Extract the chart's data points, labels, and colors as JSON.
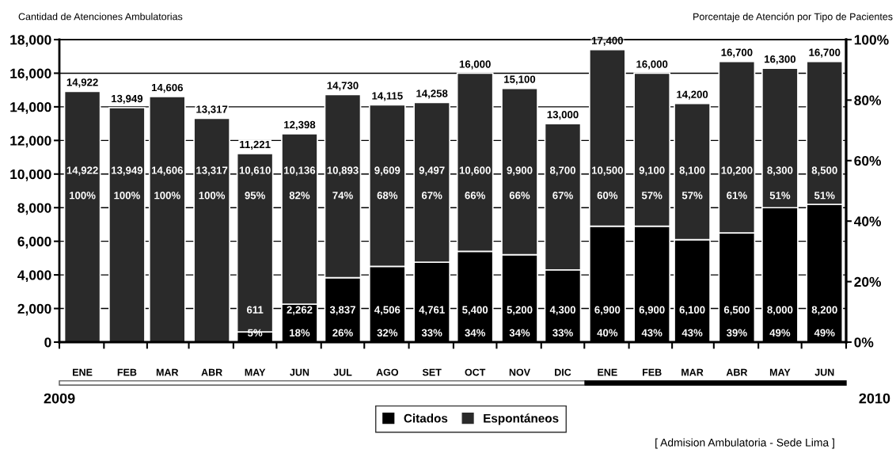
{
  "chart_data": {
    "type": "bar",
    "stacked": true,
    "ylabel": "Cantidad de Atenciones Ambulatorias",
    "y2label": "Porcentaje de Atención por Tipo de Pacientes",
    "x": [
      "2009-01",
      "2009-02",
      "2009-03",
      "2009-04",
      "2009-05",
      "2009-06",
      "2009-07",
      "2009-08",
      "2009-09",
      "2009-10",
      "2009-11",
      "2009-12",
      "2010-01",
      "2010-02",
      "2010-03",
      "2010-04",
      "2010-05",
      "2010-06"
    ],
    "xlim": [
      "2008-12-16",
      "2010-06-16"
    ],
    "xticks": [
      {
        "value": "2009-01",
        "label": "ENE"
      },
      {
        "value": "2009-02",
        "label": "FEB"
      },
      {
        "value": "2009-03",
        "label": "MAR"
      },
      {
        "value": "2009-04",
        "label": "ABR"
      },
      {
        "value": "2009-05",
        "label": "MAY"
      },
      {
        "value": "2009-06",
        "label": "JUN"
      },
      {
        "value": "2009-07",
        "label": "JUL"
      },
      {
        "value": "2009-08",
        "label": "AGO"
      },
      {
        "value": "2009-09",
        "label": "SET"
      },
      {
        "value": "2009-10",
        "label": "OCT"
      },
      {
        "value": "2009-11",
        "label": "NOV"
      },
      {
        "value": "2009-12",
        "label": "DIC"
      },
      {
        "value": "2010-01",
        "label": "ENE"
      },
      {
        "value": "2010-02",
        "label": "FEB"
      },
      {
        "value": "2010-03",
        "label": "MAR"
      },
      {
        "value": "2010-04",
        "label": "ABR"
      },
      {
        "value": "2010-05",
        "label": "MAY"
      },
      {
        "value": "2010-06",
        "label": "JUN"
      },
      {
        "value": "2008-12-16",
        "label": null
      },
      {
        "value": "2009-01-16",
        "label": null
      },
      {
        "value": "2009-02-15",
        "label": null
      },
      {
        "value": "2009-03-16",
        "label": null
      },
      {
        "value": "2009-04-16",
        "label": null
      },
      {
        "value": "2009-05-16",
        "label": null
      },
      {
        "value": "2009-06-16",
        "label": null
      },
      {
        "value": "2009-07-16",
        "label": null
      },
      {
        "value": "2009-08-16",
        "label": null
      },
      {
        "value": "2009-09-16",
        "label": null
      },
      {
        "value": "2009-10-16",
        "label": null
      },
      {
        "value": "2009-11-16",
        "label": null
      },
      {
        "value": "2009-12-16",
        "label": null
      },
      {
        "value": "2010-01-16",
        "label": null
      },
      {
        "value": "2010-02-15",
        "label": null
      },
      {
        "value": "2010-03-16",
        "label": null
      },
      {
        "value": "2010-04-16",
        "label": null
      },
      {
        "value": "2010-05-16",
        "label": null
      },
      {
        "value": "2010-06-16",
        "label": null
      }
    ],
    "ylim": [
      0,
      18000
    ],
    "yticks": [
      0,
      {
        "value": 2000,
        "label": "2,000"
      },
      {
        "value": 4000,
        "label": "4,000"
      },
      {
        "value": 6000,
        "label": "6,000"
      },
      {
        "value": 8000,
        "label": "8,000"
      },
      {
        "value": 10000,
        "label": "10,000"
      },
      {
        "value": 12000,
        "label": "12,000"
      },
      {
        "value": 14000,
        "label": "14,000"
      },
      {
        "value": 16000,
        "label": "16,000"
      },
      {
        "value": 18000,
        "label": "18,000"
      }
    ],
    "y2lim": [
      0,
      100
    ],
    "y2ticks": [
      {
        "value": 0,
        "label": "0%"
      },
      {
        "value": 20,
        "label": "20%"
      },
      {
        "value": 40,
        "label": "40%"
      },
      {
        "value": 60,
        "label": "60%"
      },
      {
        "value": 80,
        "label": "80%"
      },
      {
        "value": 100,
        "label": "100%"
      }
    ],
    "series": [
      {
        "name": "Citados",
        "color": "#000000",
        "values": [
          0,
          0,
          0,
          0,
          611,
          2262,
          3837,
          4506,
          4761,
          5400,
          5200,
          4300,
          6900,
          6900,
          6100,
          6500,
          8000,
          8200
        ],
        "value_labels": [
          null,
          null,
          null,
          null,
          "611\n5%",
          "2,262\n18%",
          "3,837\n26%",
          "4,506\n32%",
          "4,761\n33%",
          "5,400\n34%",
          "5,200\n34%",
          "4,300\n33%",
          "6,900\n40%",
          "6,900\n43%",
          "6,100\n43%",
          "6,500\n39%",
          "8,000\n49%",
          "8,200\n49%"
        ]
      },
      {
        "name": "Espontáneos",
        "color": "#2a2a2a",
        "values": [
          14922,
          13949,
          14606,
          13317,
          10610,
          10136,
          10893,
          9609,
          9497,
          10600,
          9900,
          8700,
          10500,
          9100,
          8100,
          10200,
          8300,
          8500
        ],
        "value_labels": [
          "14,922\n100%",
          "13,949\n100%",
          "14,606\n100%",
          "13,317\n100%",
          "10,610\n95%",
          "10,136\n82%",
          "10,893\n74%",
          "9,609\n68%",
          "9,497\n67%",
          "10,600\n66%",
          "9,900\n66%",
          "8,700\n67%",
          "10,500\n60%",
          "9,100\n57%",
          "8,100\n57%",
          "10,200\n61%",
          "8,300\n51%",
          "8,500\n51%"
        ]
      }
    ],
    "totals": [
      "14,922",
      "13,949",
      "14,606",
      "13,317",
      "11,221",
      "12,398",
      "14,730",
      "14,115",
      "14,258",
      "16,000",
      "15,100",
      "13,000",
      "17,400",
      "16,000",
      "14,200",
      "16,700",
      "16,300",
      "16,700"
    ],
    "grid": "y",
    "legend": "bottom",
    "annotations": [
      "2009",
      "2010",
      "[ Admision Ambulatoria - Sede Lima ]"
    ]
  }
}
